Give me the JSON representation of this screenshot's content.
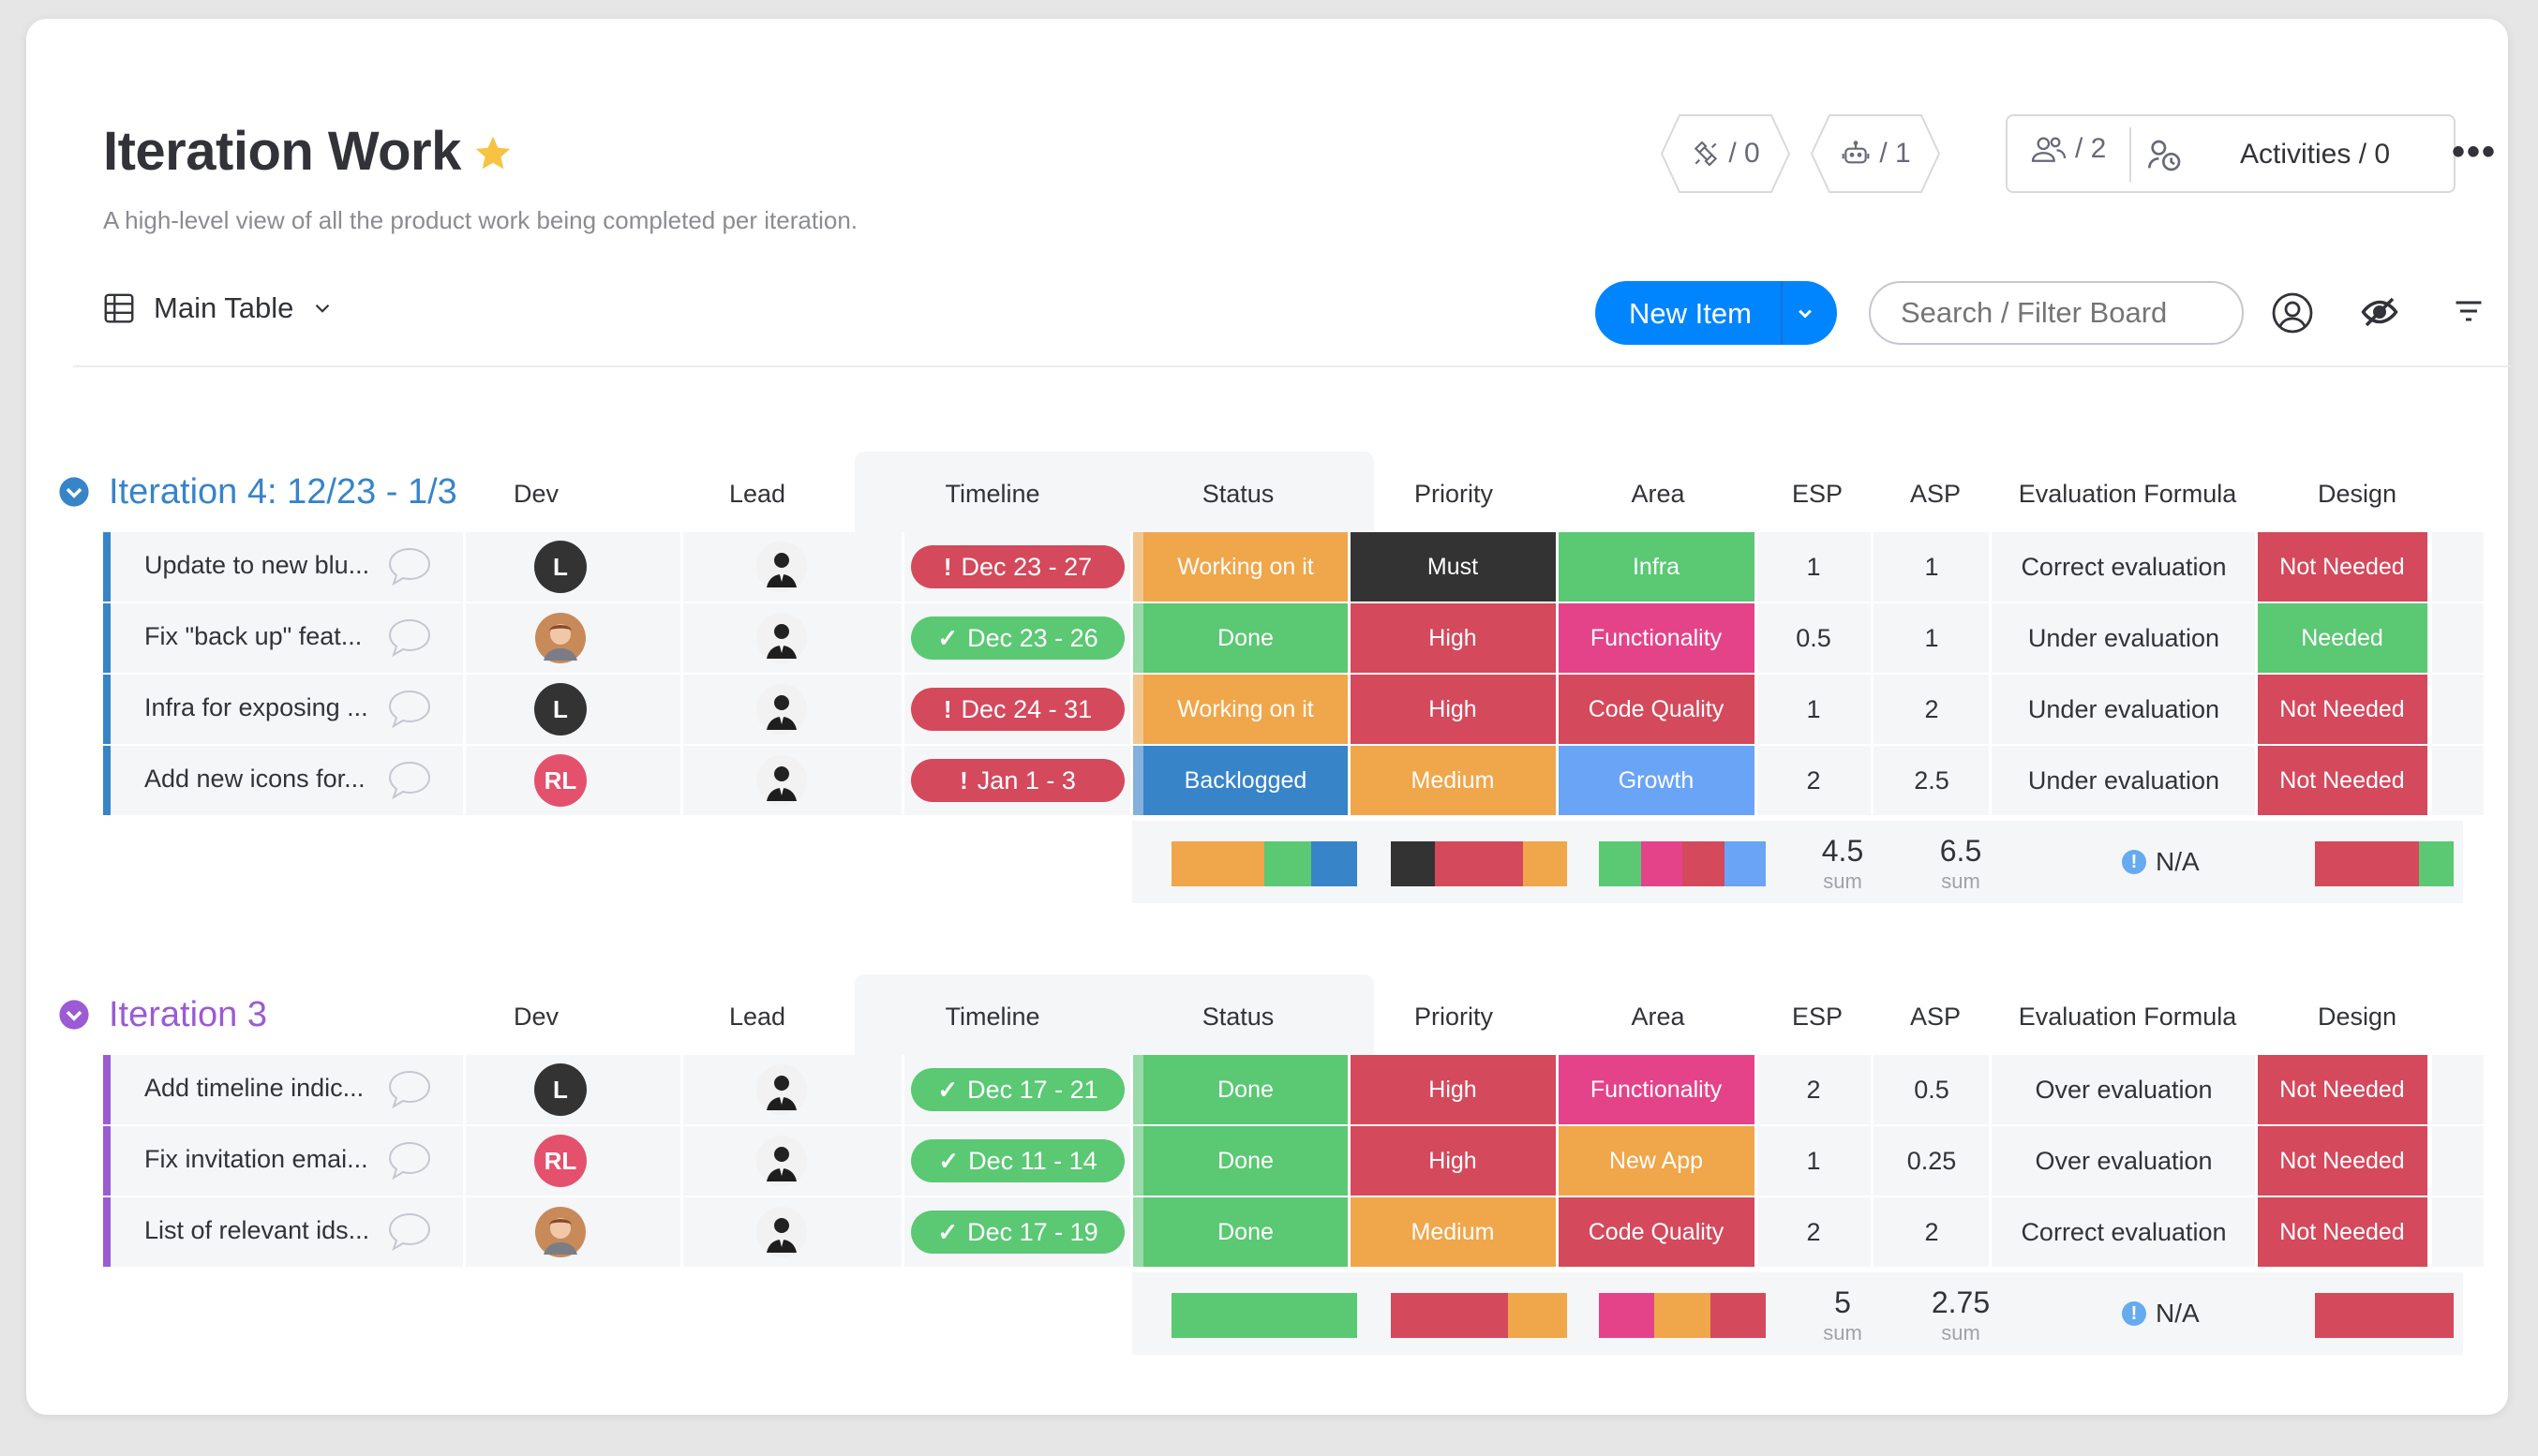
{
  "board": {
    "title": "Iteration Work",
    "description": "A high-level view of all the product work being completed per iteration.",
    "integrations_count": "/ 0",
    "automations_count": "/ 1",
    "members_count": "/ 2",
    "activities_label": "Activities / 0"
  },
  "toolbar": {
    "view_label": "Main Table",
    "new_item_label": "New Item",
    "search_placeholder": "Search / Filter Board"
  },
  "columns": [
    "Dev",
    "Lead",
    "Timeline",
    "Status",
    "Priority",
    "Area",
    "ESP",
    "ASP",
    "Evaluation Formula",
    "Design"
  ],
  "colors": {
    "done": "#5bc874",
    "working": "#f0a64a",
    "backlogged": "#3784c9",
    "must": "#333333",
    "high": "#d4495c",
    "medium": "#f0a64a",
    "infra": "#5bc874",
    "functionality": "#e4438a",
    "code_quality": "#d4495c",
    "growth": "#6aa4f6",
    "new_app": "#f0a64a",
    "needed": "#5bc874",
    "not_needed": "#d4495c",
    "timeline_late": "#d4495c",
    "timeline_done": "#5bc874",
    "group1": "#3784c9",
    "group2": "#9b5bd4"
  },
  "groups": [
    {
      "title": "Iteration 4: 12/23 - 1/3",
      "items": [
        {
          "name": "Update to new blu...",
          "dev": "L",
          "timeline": "Dec 23 - 27",
          "timeline_state": "late",
          "status": "Working on it",
          "priority": "Must",
          "area": "Infra",
          "esp": "1",
          "asp": "1",
          "evaluation": "Correct evaluation",
          "design": "Not Needed"
        },
        {
          "name": "Fix \"back up\" feat...",
          "dev": "photo",
          "timeline": "Dec 23 - 26",
          "timeline_state": "done",
          "status": "Done",
          "priority": "High",
          "area": "Functionality",
          "esp": "0.5",
          "asp": "1",
          "evaluation": "Under evaluation",
          "design": "Needed"
        },
        {
          "name": "Infra for exposing ...",
          "dev": "L",
          "timeline": "Dec 24 - 31",
          "timeline_state": "late",
          "status": "Working on it",
          "priority": "High",
          "area": "Code Quality",
          "esp": "1",
          "asp": "2",
          "evaluation": "Under evaluation",
          "design": "Not Needed"
        },
        {
          "name": "Add new icons for...",
          "dev": "RL",
          "timeline": "Jan 1 - 3",
          "timeline_state": "late",
          "status": "Backlogged",
          "priority": "Medium",
          "area": "Growth",
          "esp": "2",
          "asp": "2.5",
          "evaluation": "Under evaluation",
          "design": "Not Needed"
        }
      ],
      "summary": {
        "esp": "4.5",
        "asp": "6.5",
        "sum_label": "sum",
        "evaluation": "N/A"
      }
    },
    {
      "title": "Iteration 3",
      "items": [
        {
          "name": "Add timeline indic...",
          "dev": "L",
          "timeline": "Dec 17 - 21",
          "timeline_state": "done",
          "status": "Done",
          "priority": "High",
          "area": "Functionality",
          "esp": "2",
          "asp": "0.5",
          "evaluation": "Over evaluation",
          "design": "Not Needed"
        },
        {
          "name": "Fix invitation emai...",
          "dev": "RL",
          "timeline": "Dec 11 - 14",
          "timeline_state": "done",
          "status": "Done",
          "priority": "High",
          "area": "New App",
          "esp": "1",
          "asp": "0.25",
          "evaluation": "Over evaluation",
          "design": "Not Needed"
        },
        {
          "name": "List of relevant ids...",
          "dev": "photo",
          "timeline": "Dec 17 - 19",
          "timeline_state": "done",
          "status": "Done",
          "priority": "Medium",
          "area": "Code Quality",
          "esp": "2",
          "asp": "2",
          "evaluation": "Correct evaluation",
          "design": "Not Needed"
        }
      ],
      "summary": {
        "esp": "5",
        "asp": "2.75",
        "sum_label": "sum",
        "evaluation": "N/A"
      }
    }
  ]
}
